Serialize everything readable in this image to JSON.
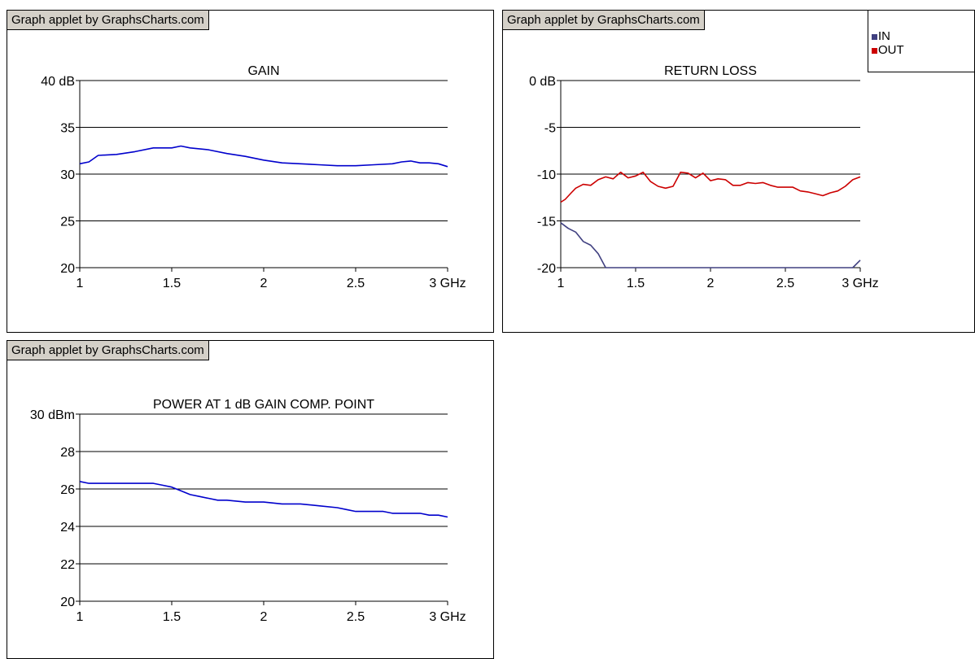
{
  "applet_label": "Graph applet by GraphsCharts.com",
  "legend": [
    {
      "label": "IN",
      "color": "#404080"
    },
    {
      "label": "OUT",
      "color": "#cc0000"
    }
  ],
  "chart_data": [
    {
      "id": "gain",
      "type": "line",
      "title": "GAIN",
      "xticks": [
        {
          "v": 1,
          "t": "1"
        },
        {
          "v": 1.5,
          "t": "1.5"
        },
        {
          "v": 2,
          "t": "2"
        },
        {
          "v": 2.5,
          "t": "2.5"
        },
        {
          "v": 3,
          "t": "3 GHz"
        }
      ],
      "yticks": [
        {
          "v": 20,
          "t": "20"
        },
        {
          "v": 25,
          "t": "25"
        },
        {
          "v": 30,
          "t": "30"
        },
        {
          "v": 35,
          "t": "35"
        },
        {
          "v": 40,
          "t": "40 dB"
        }
      ],
      "xlim": [
        1,
        3
      ],
      "ylim": [
        20,
        40
      ],
      "grid": true,
      "series": [
        {
          "color": "#0000cc",
          "x": [
            1.0,
            1.05,
            1.1,
            1.2,
            1.3,
            1.4,
            1.5,
            1.55,
            1.6,
            1.7,
            1.8,
            1.9,
            2.0,
            2.1,
            2.2,
            2.3,
            2.4,
            2.5,
            2.6,
            2.7,
            2.75,
            2.8,
            2.85,
            2.9,
            2.95,
            3.0
          ],
          "y": [
            31.1,
            31.3,
            32.0,
            32.1,
            32.4,
            32.8,
            32.8,
            33.0,
            32.8,
            32.6,
            32.2,
            31.9,
            31.5,
            31.2,
            31.1,
            31.0,
            30.9,
            30.9,
            31.0,
            31.1,
            31.3,
            31.4,
            31.2,
            31.2,
            31.1,
            30.8
          ]
        }
      ]
    },
    {
      "id": "return-loss",
      "type": "line",
      "title": "RETURN LOSS",
      "xticks": [
        {
          "v": 1,
          "t": "1"
        },
        {
          "v": 1.5,
          "t": "1.5"
        },
        {
          "v": 2,
          "t": "2"
        },
        {
          "v": 2.5,
          "t": "2.5"
        },
        {
          "v": 3,
          "t": "3 GHz"
        }
      ],
      "yticks": [
        {
          "v": -20,
          "t": "-20"
        },
        {
          "v": -15,
          "t": "-15"
        },
        {
          "v": -10,
          "t": "-10"
        },
        {
          "v": -5,
          "t": "-5"
        },
        {
          "v": 0,
          "t": "0 dB"
        }
      ],
      "xlim": [
        1,
        3
      ],
      "ylim": [
        -20,
        0
      ],
      "grid": true,
      "series": [
        {
          "name": "IN",
          "color": "#404080",
          "x": [
            1.0,
            1.05,
            1.1,
            1.15,
            1.2,
            1.25,
            1.3,
            1.35,
            1.4,
            1.5,
            2.0,
            2.5,
            2.9,
            2.95,
            3.0
          ],
          "y": [
            -15.2,
            -15.8,
            -16.2,
            -17.2,
            -17.6,
            -18.5,
            -20.0,
            -20.0,
            -20.0,
            -20.0,
            -20.0,
            -20.0,
            -20.0,
            -20.0,
            -19.2
          ]
        },
        {
          "name": "OUT",
          "color": "#cc0000",
          "x": [
            1.0,
            1.03,
            1.07,
            1.1,
            1.15,
            1.2,
            1.25,
            1.3,
            1.35,
            1.4,
            1.45,
            1.5,
            1.55,
            1.6,
            1.65,
            1.7,
            1.75,
            1.8,
            1.85,
            1.9,
            1.95,
            2.0,
            2.05,
            2.1,
            2.15,
            2.2,
            2.25,
            2.3,
            2.35,
            2.4,
            2.45,
            2.5,
            2.55,
            2.6,
            2.65,
            2.7,
            2.75,
            2.8,
            2.85,
            2.9,
            2.95,
            3.0
          ],
          "y": [
            -13.0,
            -12.7,
            -12.0,
            -11.5,
            -11.1,
            -11.2,
            -10.6,
            -10.3,
            -10.5,
            -9.8,
            -10.4,
            -10.2,
            -9.8,
            -10.8,
            -11.3,
            -11.5,
            -11.3,
            -9.8,
            -9.9,
            -10.4,
            -9.9,
            -10.7,
            -10.5,
            -10.6,
            -11.2,
            -11.2,
            -10.9,
            -11.0,
            -10.9,
            -11.2,
            -11.4,
            -11.4,
            -11.4,
            -11.8,
            -11.9,
            -12.1,
            -12.3,
            -12.0,
            -11.8,
            -11.3,
            -10.6,
            -10.3
          ]
        }
      ]
    },
    {
      "id": "power",
      "type": "line",
      "title": "POWER AT 1 dB GAIN COMP. POINT",
      "xticks": [
        {
          "v": 1,
          "t": "1"
        },
        {
          "v": 1.5,
          "t": "1.5"
        },
        {
          "v": 2,
          "t": "2"
        },
        {
          "v": 2.5,
          "t": "2.5"
        },
        {
          "v": 3,
          "t": "3 GHz"
        }
      ],
      "yticks": [
        {
          "v": 20,
          "t": "20"
        },
        {
          "v": 22,
          "t": "22"
        },
        {
          "v": 24,
          "t": "24"
        },
        {
          "v": 26,
          "t": "26"
        },
        {
          "v": 28,
          "t": "28"
        },
        {
          "v": 30,
          "t": "30 dBm"
        }
      ],
      "xlim": [
        1,
        3
      ],
      "ylim": [
        20,
        30
      ],
      "grid": true,
      "series": [
        {
          "color": "#0000cc",
          "x": [
            1.0,
            1.05,
            1.1,
            1.2,
            1.3,
            1.4,
            1.45,
            1.5,
            1.55,
            1.6,
            1.65,
            1.7,
            1.75,
            1.8,
            1.9,
            2.0,
            2.1,
            2.2,
            2.3,
            2.4,
            2.45,
            2.5,
            2.55,
            2.6,
            2.65,
            2.7,
            2.75,
            2.8,
            2.85,
            2.9,
            2.95,
            3.0
          ],
          "y": [
            26.4,
            26.3,
            26.3,
            26.3,
            26.3,
            26.3,
            26.2,
            26.1,
            25.9,
            25.7,
            25.6,
            25.5,
            25.4,
            25.4,
            25.3,
            25.3,
            25.2,
            25.2,
            25.1,
            25.0,
            24.9,
            24.8,
            24.8,
            24.8,
            24.8,
            24.7,
            24.7,
            24.7,
            24.7,
            24.6,
            24.6,
            24.5
          ]
        }
      ]
    }
  ]
}
